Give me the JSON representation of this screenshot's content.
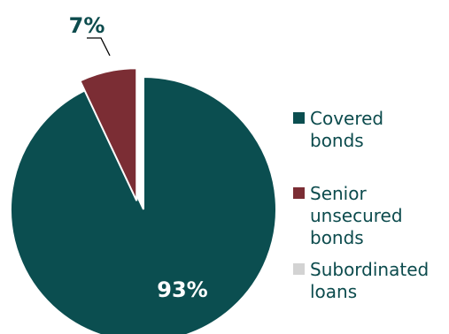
{
  "chart_data": {
    "type": "pie",
    "title": "",
    "slices": [
      {
        "label": "Covered bonds",
        "value": 93,
        "display": "93%",
        "color": "#0b4e50"
      },
      {
        "label": "Senior unsecured bonds",
        "value": 7,
        "display": "7%",
        "color": "#7b2d34"
      },
      {
        "label": "Subordinated loans",
        "value": 0,
        "display": "",
        "color": "#d3d3d3"
      }
    ],
    "exploded_slice": "Senior unsecured bonds",
    "legend_position": "right"
  },
  "legend": {
    "items": [
      {
        "lines": [
          "Covered",
          "bonds"
        ],
        "color": "#0b4e50"
      },
      {
        "lines": [
          "Senior",
          "unsecured",
          "bonds"
        ],
        "color": "#7b2d34"
      },
      {
        "lines": [
          "Subordinated",
          "loans"
        ],
        "color": "#d3d3d3"
      }
    ]
  }
}
